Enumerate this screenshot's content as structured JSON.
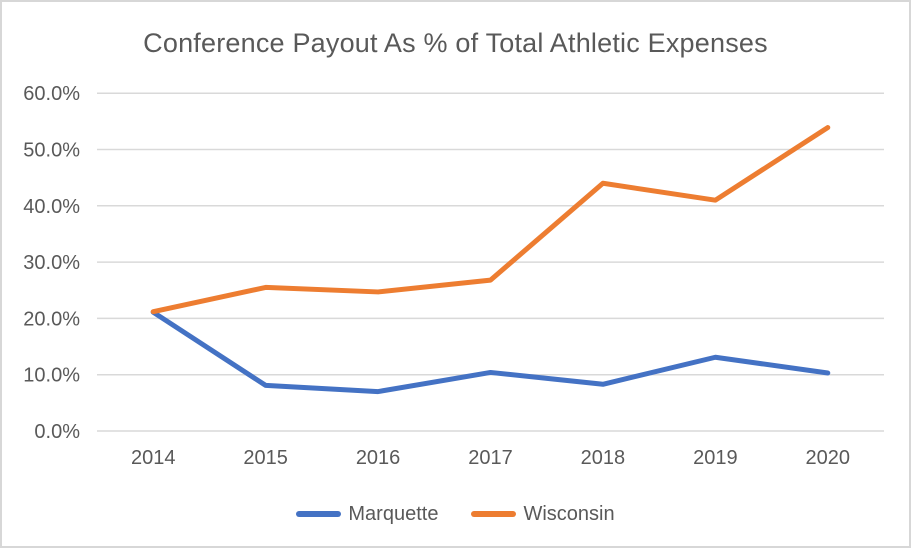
{
  "chart_data": {
    "type": "line",
    "title": "Conference Payout As % of Total Athletic Expenses",
    "categories": [
      "2014",
      "2015",
      "2016",
      "2017",
      "2018",
      "2019",
      "2020"
    ],
    "series": [
      {
        "name": "Marquette",
        "color": "#4472C4",
        "values": [
          21.1,
          8.1,
          7.0,
          10.4,
          8.3,
          13.1,
          10.3
        ]
      },
      {
        "name": "Wisconsin",
        "color": "#ED7D31",
        "values": [
          21.2,
          25.5,
          24.7,
          26.8,
          44.0,
          41.0,
          53.9
        ]
      }
    ],
    "xlabel": "",
    "ylabel": "",
    "ylim": [
      0,
      60
    ],
    "yticks": [
      {
        "value": 0,
        "label": "0.0%"
      },
      {
        "value": 10,
        "label": "10.0%"
      },
      {
        "value": 20,
        "label": "20.0%"
      },
      {
        "value": 30,
        "label": "30.0%"
      },
      {
        "value": 40,
        "label": "40.0%"
      },
      {
        "value": 50,
        "label": "50.0%"
      },
      {
        "value": 60,
        "label": "60.0%"
      }
    ],
    "grid": true,
    "gridline_color": "#D9D9D9",
    "text_color": "#595959",
    "legend_position": "bottom"
  }
}
